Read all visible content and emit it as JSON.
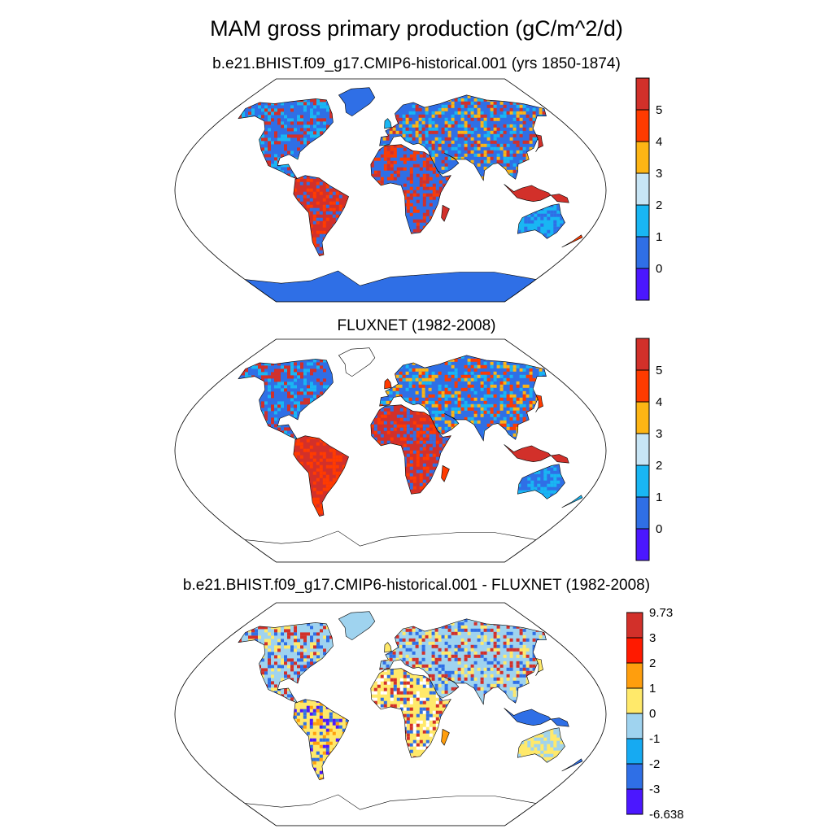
{
  "title": "MAM gross primary production (gC/m^2/d)",
  "panels": [
    {
      "title": "b.e21.BHIST.f09_g17.CMIP6-historical.001 (yrs 1850-1874)",
      "colorbar": {
        "labels": [
          "5",
          "4",
          "3",
          "2",
          "1",
          "0"
        ],
        "colors": [
          "#d2302a",
          "#ff3b00",
          "#fdb514",
          "#c7e5f5",
          "#19b6f3",
          "#2f6fe6",
          "#4b17ff"
        ]
      }
    },
    {
      "title": "FLUXNET (1982-2008)",
      "colorbar": {
        "labels": [
          "5",
          "4",
          "3",
          "2",
          "1",
          "0"
        ],
        "colors": [
          "#d2302a",
          "#ff3b00",
          "#fdb514",
          "#c7e5f5",
          "#19b6f3",
          "#2f6fe6",
          "#4b17ff"
        ]
      }
    },
    {
      "title": "b.e21.BHIST.f09_g17.CMIP6-historical.001 - FLUXNET (1982-2008)",
      "colorbar": {
        "labels": [
          "9.73",
          "3",
          "2",
          "1",
          "0",
          "-1",
          "-2",
          "-3",
          "-6.638"
        ],
        "colors": [
          "#d2302a",
          "#ff1a00",
          "#ff9e0d",
          "#ffe96a",
          "#9fd3ef",
          "#16aaf2",
          "#2f6fe6",
          "#4b17ff"
        ]
      }
    }
  ]
}
